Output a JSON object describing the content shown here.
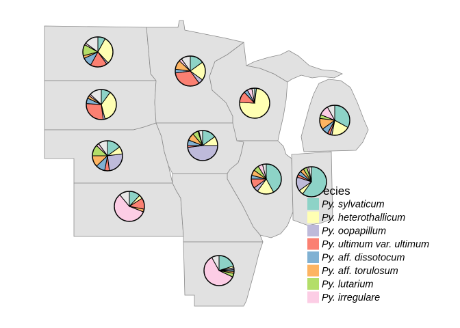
{
  "chart_data": {
    "type": "pie",
    "map_regions": [
      "North Dakota",
      "South Dakota",
      "Nebraska",
      "Kansas",
      "Minnesota",
      "Iowa",
      "Wisconsin",
      "Illinois",
      "Michigan",
      "Indiana",
      "Arkansas"
    ],
    "legend": {
      "title": "Species",
      "title_visible": "ecies",
      "entries": [
        {
          "name": "Py. sylvaticum",
          "color": "#8dd3c7"
        },
        {
          "name": "Py. heterothallicum",
          "color": "#ffffb3"
        },
        {
          "name": "Py. oopapillum",
          "color": "#bebada"
        },
        {
          "name": "Py. ultimum var. ultimum",
          "color": "#fb8072"
        },
        {
          "name": "Py. aff. dissotocum",
          "color": "#80b1d3"
        },
        {
          "name": "Py. aff. torulosum",
          "color": "#fdb462"
        },
        {
          "name": "Py. lutarium",
          "color": "#b3de69"
        },
        {
          "name": "Py. irregulare",
          "color": "#fccde5"
        }
      ]
    },
    "other_color": "#e8e8e8",
    "pies": [
      {
        "state": "North Dakota",
        "slices": [
          0.08,
          0.3,
          0.02,
          0.18,
          0.1,
          0.03,
          0.12,
          0.02,
          0.15
        ]
      },
      {
        "state": "South Dakota",
        "slices": [
          0.1,
          0.36,
          0.02,
          0.28,
          0.06,
          0.03,
          0.0,
          0.02,
          0.13
        ]
      },
      {
        "state": "Nebraska",
        "slices": [
          0.15,
          0.08,
          0.25,
          0.05,
          0.1,
          0.12,
          0.12,
          0.03,
          0.1
        ]
      },
      {
        "state": "Kansas",
        "slices": [
          0.12,
          0.04,
          0.0,
          0.12,
          0.0,
          0.03,
          0.0,
          0.58,
          0.11
        ]
      },
      {
        "state": "Minnesota",
        "slices": [
          0.15,
          0.2,
          0.05,
          0.33,
          0.04,
          0.1,
          0.0,
          0.03,
          0.1
        ]
      },
      {
        "state": "Iowa",
        "slices": [
          0.15,
          0.1,
          0.48,
          0.02,
          0.06,
          0.08,
          0.06,
          0.01,
          0.04
        ]
      },
      {
        "state": "Wisconsin",
        "slices": [
          0.02,
          0.74,
          0.0,
          0.12,
          0.04,
          0.0,
          0.0,
          0.05,
          0.03
        ]
      },
      {
        "state": "Illinois",
        "slices": [
          0.42,
          0.18,
          0.05,
          0.1,
          0.04,
          0.06,
          0.06,
          0.05,
          0.04
        ]
      },
      {
        "state": "Michigan",
        "slices": [
          0.33,
          0.2,
          0.02,
          0.03,
          0.07,
          0.12,
          0.04,
          0.11,
          0.08
        ]
      },
      {
        "state": "Indiana",
        "slices": [
          0.6,
          0.05,
          0.15,
          0.03,
          0.04,
          0.04,
          0.04,
          0.02,
          0.03
        ]
      },
      {
        "state": "Arkansas",
        "slices": [
          0.2,
          0.02,
          0.02,
          0.0,
          0.02,
          0.02,
          0.04,
          0.6,
          0.08
        ]
      }
    ]
  }
}
